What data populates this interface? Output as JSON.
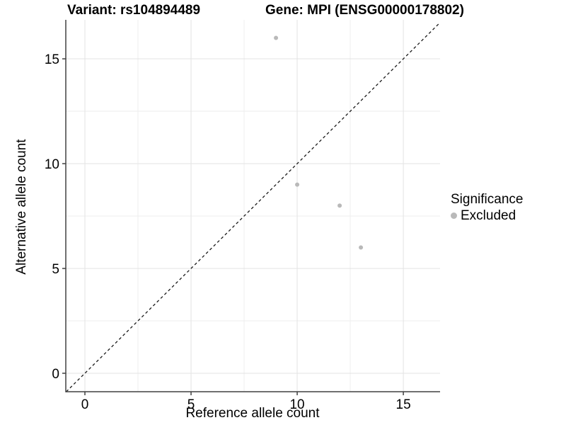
{
  "chart_data": {
    "type": "scatter",
    "title_left": "Variant: rs104894489",
    "title_right": "Gene: MPI (ENSG00000178802)",
    "xlabel": "Reference allele count",
    "ylabel": "Alternative allele count",
    "xlim": [
      -0.9,
      16.73
    ],
    "ylim": [
      -0.88,
      16.86
    ],
    "x_major_ticks": [
      0,
      5,
      10,
      15
    ],
    "x_minor_ticks": [
      2.5,
      7.5,
      12.5
    ],
    "y_major_ticks": [
      0,
      5,
      10,
      15
    ],
    "y_minor_ticks": [
      2.5,
      7.5,
      12.5
    ],
    "grid": "major and minor gridlines on white background",
    "series": [
      {
        "name": "Excluded",
        "color": "#b9b9b9",
        "points": [
          [
            9,
            16
          ],
          [
            10,
            9
          ],
          [
            12,
            8
          ],
          [
            13,
            6
          ]
        ]
      }
    ],
    "reference_line": {
      "type": "identity y=x",
      "style": "dashed",
      "color": "#1a1a1a"
    },
    "legend": {
      "position": "right",
      "title": "Significance",
      "entries": [
        {
          "label": "Excluded",
          "color": "#b9b9b9"
        }
      ]
    },
    "colors": {
      "background": "#ffffff",
      "grid_major": "#e3e3e3",
      "grid_minor": "#eeeeee",
      "axis_line": "#404040",
      "text": "#000000"
    }
  }
}
